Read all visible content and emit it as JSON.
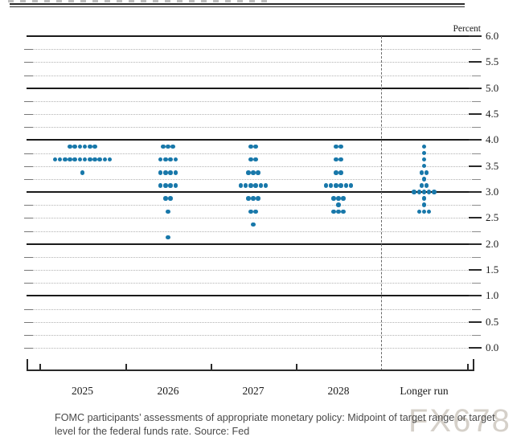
{
  "watermark": {
    "text": "FX678"
  },
  "caption": {
    "text": "FOMC participants’ assessments of appropriate monetary policy: Midpoint of target range or target level for the federal funds rate. Source: Fed"
  },
  "chart_data": {
    "type": "scatter",
    "subtype": "fomc-dot-plot",
    "y_axis": {
      "title": "Percent",
      "min": 0,
      "max": 6,
      "label_step": 0.5,
      "tick_step": 0.25,
      "labels": [
        "6.0",
        "5.5",
        "5.0",
        "4.5",
        "4.0",
        "3.5",
        "3.0",
        "2.5",
        "2.0",
        "1.5",
        "1.0",
        "0.5",
        "0.0"
      ],
      "solid_line_values": [
        6,
        5,
        4,
        3,
        2,
        1
      ],
      "grid": "dotted minor lines every 0.25"
    },
    "categories": [
      "2025",
      "2026",
      "2027",
      "2028",
      "Longer run"
    ],
    "separator_before_category": "Longer run",
    "series": [
      {
        "category": "2025",
        "dots": [
          {
            "rate": 3.875,
            "count": 6
          },
          {
            "rate": 3.625,
            "count": 12
          },
          {
            "rate": 3.375,
            "count": 1
          }
        ]
      },
      {
        "category": "2026",
        "dots": [
          {
            "rate": 3.875,
            "count": 3
          },
          {
            "rate": 3.625,
            "count": 4
          },
          {
            "rate": 3.375,
            "count": 4
          },
          {
            "rate": 3.125,
            "count": 4
          },
          {
            "rate": 2.875,
            "count": 2
          },
          {
            "rate": 2.625,
            "count": 1
          },
          {
            "rate": 2.125,
            "count": 1
          }
        ]
      },
      {
        "category": "2027",
        "dots": [
          {
            "rate": 3.875,
            "count": 2
          },
          {
            "rate": 3.625,
            "count": 2
          },
          {
            "rate": 3.375,
            "count": 3
          },
          {
            "rate": 3.125,
            "count": 6
          },
          {
            "rate": 2.875,
            "count": 3
          },
          {
            "rate": 2.625,
            "count": 2
          },
          {
            "rate": 2.375,
            "count": 1
          }
        ]
      },
      {
        "category": "2028",
        "dots": [
          {
            "rate": 3.875,
            "count": 2
          },
          {
            "rate": 3.625,
            "count": 2
          },
          {
            "rate": 3.375,
            "count": 2
          },
          {
            "rate": 3.125,
            "count": 6
          },
          {
            "rate": 2.875,
            "count": 3
          },
          {
            "rate": 2.75,
            "count": 1
          },
          {
            "rate": 2.625,
            "count": 3
          }
        ]
      },
      {
        "category": "Longer run",
        "dots": [
          {
            "rate": 3.875,
            "count": 1
          },
          {
            "rate": 3.75,
            "count": 1
          },
          {
            "rate": 3.625,
            "count": 1
          },
          {
            "rate": 3.5,
            "count": 1
          },
          {
            "rate": 3.375,
            "count": 2
          },
          {
            "rate": 3.25,
            "count": 1
          },
          {
            "rate": 3.125,
            "count": 2
          },
          {
            "rate": 3.0,
            "count": 5
          },
          {
            "rate": 2.875,
            "count": 1
          },
          {
            "rate": 2.75,
            "count": 1
          },
          {
            "rate": 2.625,
            "count": 3
          }
        ]
      }
    ],
    "colors": {
      "dot": "#1878aa",
      "solid_grid": "#1a1a1a",
      "dotted_grid": "#b3b3b3",
      "caption_text": "#4a4a4a",
      "watermark": "#c8c1b7"
    }
  }
}
